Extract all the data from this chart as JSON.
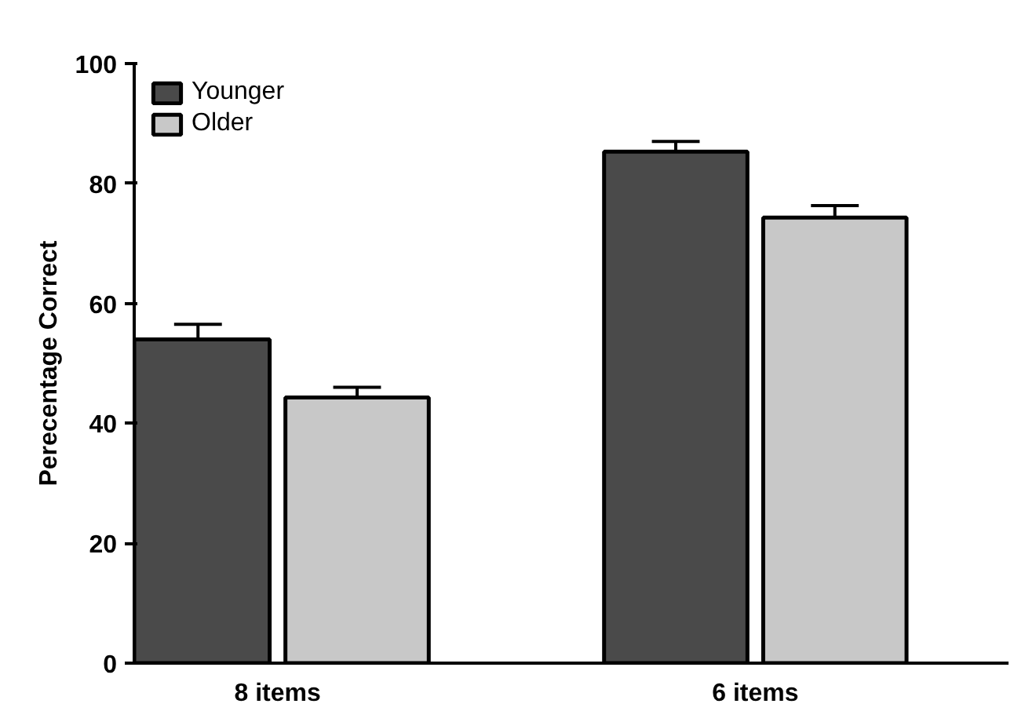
{
  "chart_data": {
    "type": "bar",
    "ylabel": "Perecentage Correct",
    "categories": [
      "8 items",
      "6 items"
    ],
    "series": [
      {
        "name": "Younger",
        "color": "#4a4a4a",
        "values": [
          54,
          85.3
        ],
        "errors": [
          [
            54,
            56.5
          ],
          [
            85.3,
            87
          ]
        ]
      },
      {
        "name": "Older",
        "color": "#c8c8c8",
        "values": [
          44.3,
          74.3
        ],
        "errors": [
          [
            44.3,
            46
          ],
          [
            74.3,
            76.3
          ]
        ]
      }
    ],
    "ylim": [
      0,
      100
    ],
    "yticks": [
      0,
      20,
      40,
      60,
      80,
      100
    ],
    "grid": false,
    "legend": "top left"
  }
}
